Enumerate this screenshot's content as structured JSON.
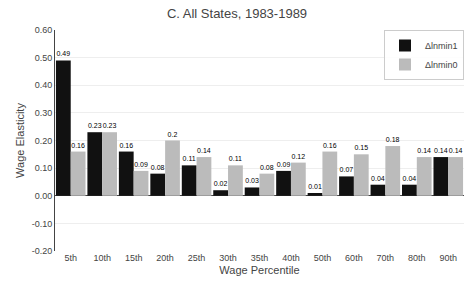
{
  "chart_data": {
    "type": "bar",
    "title": "C. All States, 1983-1989",
    "xlabel": "Wage Percentile",
    "ylabel": "Wage Elasticity",
    "categories": [
      "5th",
      "10th",
      "15th",
      "20th",
      "25th",
      "30th",
      "35th",
      "40th",
      "50th",
      "60th",
      "70th",
      "80th",
      "90th"
    ],
    "series": [
      {
        "name": "Δlnmin1",
        "color": "#111111",
        "values": [
          0.49,
          0.23,
          0.16,
          0.08,
          0.11,
          0.02,
          0.03,
          0.09,
          0.01,
          0.07,
          0.04,
          0.04,
          0.14
        ]
      },
      {
        "name": "Δlnmin0",
        "color": "#bbbbbb",
        "values": [
          0.16,
          0.23,
          0.09,
          0.2,
          0.14,
          0.11,
          0.08,
          0.12,
          0.16,
          0.15,
          0.18,
          0.14,
          0.14
        ]
      }
    ],
    "ylim": [
      -0.2,
      0.6
    ],
    "yticks": [
      {
        "value": -0.2,
        "label": "-0.20"
      },
      {
        "value": -0.1,
        "label": "-0.10"
      },
      {
        "value": 0,
        "label": "0.00"
      },
      {
        "value": 0.1,
        "label": "0.10"
      },
      {
        "value": 0.2,
        "label": "0.20"
      },
      {
        "value": 0.3,
        "label": "0.30"
      },
      {
        "value": 0.4,
        "label": "0.40"
      },
      {
        "value": 0.5,
        "label": "0.50"
      },
      {
        "value": 0.6,
        "label": "0.60"
      }
    ],
    "grid": true,
    "legend": "upper right",
    "data_labels": true
  }
}
